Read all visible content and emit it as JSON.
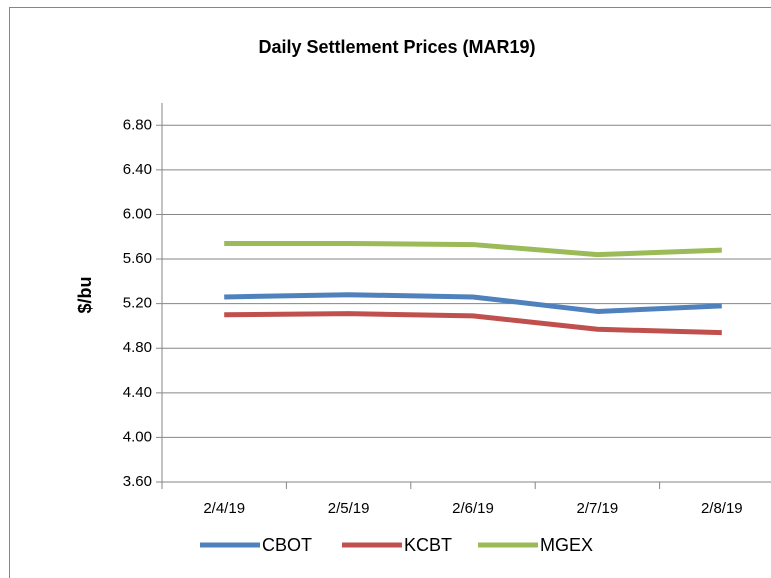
{
  "chart_data": {
    "type": "line",
    "title": "Daily Settlement Prices (MAR19)",
    "y_label": "$/bu",
    "categories": [
      "2/4/19",
      "2/5/19",
      "2/6/19",
      "2/7/19",
      "2/8/19"
    ],
    "series": [
      {
        "name": "CBOT",
        "color": "#4f81bd",
        "values": [
          5.26,
          5.28,
          5.26,
          5.13,
          5.18
        ]
      },
      {
        "name": "KCBT",
        "color": "#c0504d",
        "values": [
          5.1,
          5.11,
          5.09,
          4.97,
          4.94
        ]
      },
      {
        "name": "MGEX",
        "color": "#9bbb59",
        "values": [
          5.74,
          5.74,
          5.73,
          5.64,
          5.68
        ]
      }
    ],
    "ylim": [
      3.6,
      7.0
    ],
    "yticks": [
      {
        "value": 3.6,
        "label": "3.60"
      },
      {
        "value": 4.0,
        "label": "4.00"
      },
      {
        "value": 4.4,
        "label": "4.40"
      },
      {
        "value": 4.8,
        "label": "4.80"
      },
      {
        "value": 5.2,
        "label": "5.20"
      },
      {
        "value": 5.6,
        "label": "5.60"
      },
      {
        "value": 6.0,
        "label": "6.00"
      },
      {
        "value": 6.4,
        "label": "6.40"
      },
      {
        "value": 6.8,
        "label": "6.80"
      }
    ],
    "grid": true,
    "legend": "bottom"
  }
}
